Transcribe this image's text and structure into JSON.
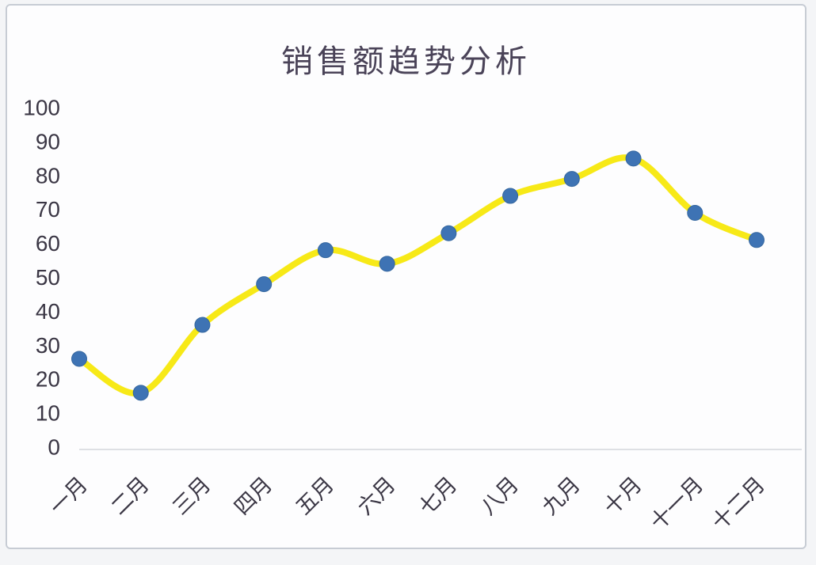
{
  "page": {
    "background_color": "#f4f5f7",
    "panel_background": "#fdfdfe",
    "panel_border_color": "#c7ccd4"
  },
  "chart_data": {
    "type": "line",
    "title": "销售额趋势分析",
    "categories": [
      "一月",
      "二月",
      "三月",
      "四月",
      "五月",
      "六月",
      "七月",
      "八月",
      "九月",
      "十月",
      "十一月",
      "十二月"
    ],
    "series": [
      {
        "name": "销售额",
        "values": [
          26,
          16,
          36,
          48,
          58,
          54,
          63,
          74,
          79,
          85,
          69,
          61
        ]
      }
    ],
    "xlabel": "",
    "ylabel": "",
    "ylim": [
      0,
      100
    ],
    "y_ticks": [
      0,
      10,
      20,
      30,
      40,
      50,
      60,
      70,
      80,
      90,
      100
    ],
    "x_label_rotation_deg": 45,
    "grid": false,
    "legend": false,
    "smooth_line": true,
    "line_color": "#f7e917",
    "marker_color": "#3e73b4",
    "marker_edge_color": "#35679f",
    "title_color": "#4a4358",
    "tick_label_color": "#3a3644",
    "axis_line_color": "#d3d6dc"
  }
}
